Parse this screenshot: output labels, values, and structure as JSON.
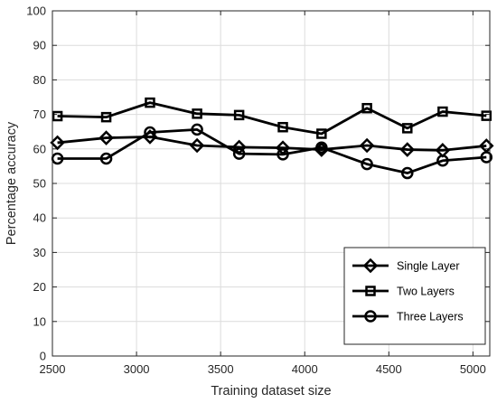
{
  "chart_data": {
    "type": "line",
    "title": "",
    "xlabel": "Training dataset size",
    "ylabel": "Percentage accuracy",
    "xlim": [
      2500,
      5100
    ],
    "ylim": [
      0,
      100
    ],
    "xticks": [
      2500,
      3000,
      3500,
      4000,
      4500,
      5000
    ],
    "yticks": [
      0,
      10,
      20,
      30,
      40,
      50,
      60,
      70,
      80,
      90,
      100
    ],
    "grid": true,
    "legend_position": "lower-right",
    "x": [
      2530,
      2820,
      3080,
      3360,
      3610,
      3870,
      4100,
      4370,
      4610,
      4820,
      5080
    ],
    "series": [
      {
        "name": "Single Layer",
        "marker": "diamond",
        "color": "#000000",
        "values": [
          61.8,
          63.2,
          63.5,
          61.0,
          60.5,
          60.3,
          59.8,
          61.0,
          59.8,
          59.6,
          60.9
        ]
      },
      {
        "name": "Two Layers",
        "marker": "square",
        "color": "#000000",
        "values": [
          69.5,
          69.2,
          73.4,
          70.2,
          69.8,
          66.3,
          64.4,
          71.8,
          66.0,
          70.8,
          69.6
        ]
      },
      {
        "name": "Three Layers",
        "marker": "circle",
        "color": "#000000",
        "values": [
          57.2,
          57.2,
          64.8,
          65.6,
          58.6,
          58.4,
          60.4,
          55.6,
          53.0,
          56.6,
          57.6
        ]
      }
    ]
  }
}
